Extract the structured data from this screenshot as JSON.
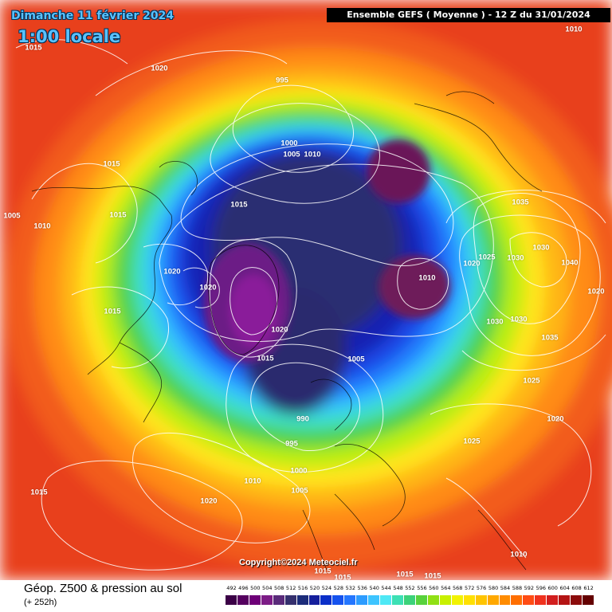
{
  "header": {
    "date": "Dimanche 11 février 2024",
    "local_time": "1:00 locale",
    "run_info": "Ensemble GEFS ( Moyenne ) - 12 Z du 31/01/2024"
  },
  "pressure_labels": [
    "1015",
    "1010",
    "1020",
    "995",
    "1000",
    "1005",
    "1010",
    "1015",
    "1015",
    "1015",
    "1010",
    "1005",
    "1020",
    "1020",
    "1015",
    "1020",
    "1015",
    "1005",
    "1035",
    "1025",
    "1030",
    "1030",
    "1040",
    "1010",
    "1020",
    "1030",
    "1030",
    "1020",
    "1035",
    "1025",
    "1020",
    "1025",
    "990",
    "995",
    "1000",
    "1005",
    "1010",
    "1020",
    "1015",
    "1010",
    "1015",
    "1015",
    "1015",
    "1015"
  ],
  "copyright": "Copyright©2024 Meteociel.fr",
  "footer": {
    "title": "Géop. Z500 & pression au sol",
    "subtitle": "(+ 252h)"
  },
  "color_scale": {
    "ticks": [
      "492",
      "496",
      "500",
      "504",
      "508",
      "512",
      "516",
      "520",
      "524",
      "528",
      "532",
      "536",
      "540",
      "544",
      "548",
      "552",
      "556",
      "560",
      "564",
      "568",
      "572",
      "576",
      "580",
      "584",
      "588",
      "592",
      "596",
      "600",
      "604",
      "608",
      "612"
    ],
    "colors": [
      "#3b0046",
      "#55005f",
      "#6e0078",
      "#7c1c86",
      "#5a2a7a",
      "#35306e",
      "#1c2c7a",
      "#151f9c",
      "#0b2fc8",
      "#1552ee",
      "#2476ff",
      "#2d9cff",
      "#3dc4ff",
      "#4ee8f5",
      "#3ce0b4",
      "#3cd27a",
      "#58d23c",
      "#90e014",
      "#c8f000",
      "#f2f200",
      "#ffe000",
      "#ffc400",
      "#ffa800",
      "#ff8c00",
      "#ff6e00",
      "#ff4c14",
      "#f0321e",
      "#d21e1e",
      "#b41414",
      "#8c0c0c",
      "#640000"
    ]
  },
  "colors": {
    "outer": "#ec4624",
    "orange": "#ff8c1a",
    "yellow": "#ffe21a",
    "green": "#58d23c",
    "cyan": "#36c8ff",
    "blue": "#1e55ee",
    "deep_blue": "#1422b4",
    "navy": "#2b2d6e",
    "purple": "#7a1a78"
  }
}
